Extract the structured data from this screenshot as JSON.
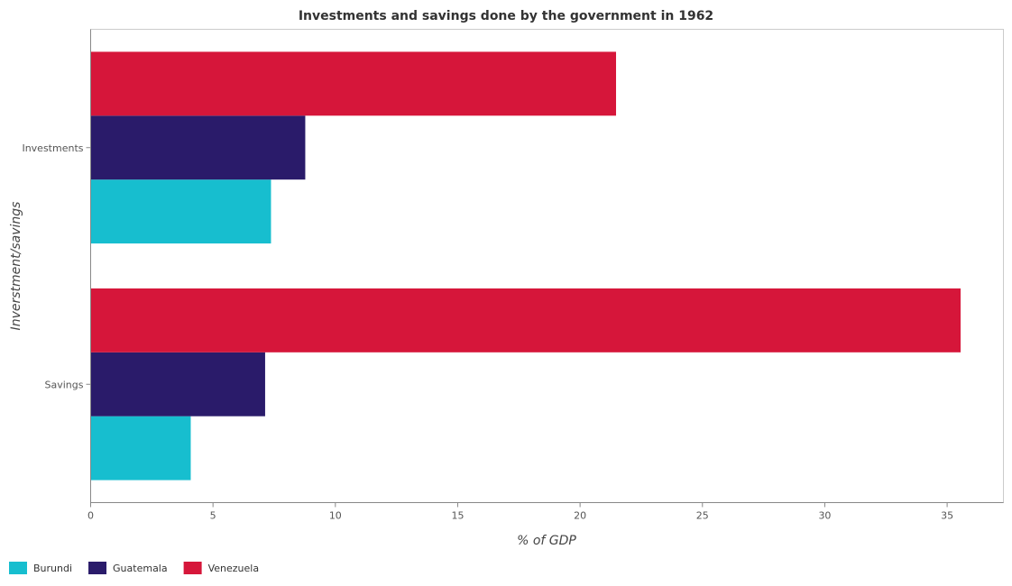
{
  "chart_data": {
    "type": "bar",
    "orientation": "horizontal",
    "title": "Investments and savings done by the government in 1962",
    "xlabel": "% of GDP",
    "ylabel": "Inverstment/savings",
    "categories": [
      "Investments",
      "Savings"
    ],
    "series": [
      {
        "name": "Burundi",
        "color": "#17becf",
        "values": [
          7.37,
          4.09
        ]
      },
      {
        "name": "Guatemala",
        "color": "#2a1b6a",
        "values": [
          8.77,
          7.13
        ]
      },
      {
        "name": "Venezuela",
        "color": "#d6163a",
        "values": [
          21.47,
          35.55
        ]
      }
    ],
    "xlim": [
      0,
      37.3
    ],
    "xticks": [
      0,
      5,
      10,
      15,
      20,
      25,
      30,
      35
    ],
    "xtick_labels": [
      "0",
      "5",
      "10",
      "15",
      "20",
      "25",
      "30",
      "35"
    ],
    "grid": false,
    "legend_position": "bottom-left"
  }
}
